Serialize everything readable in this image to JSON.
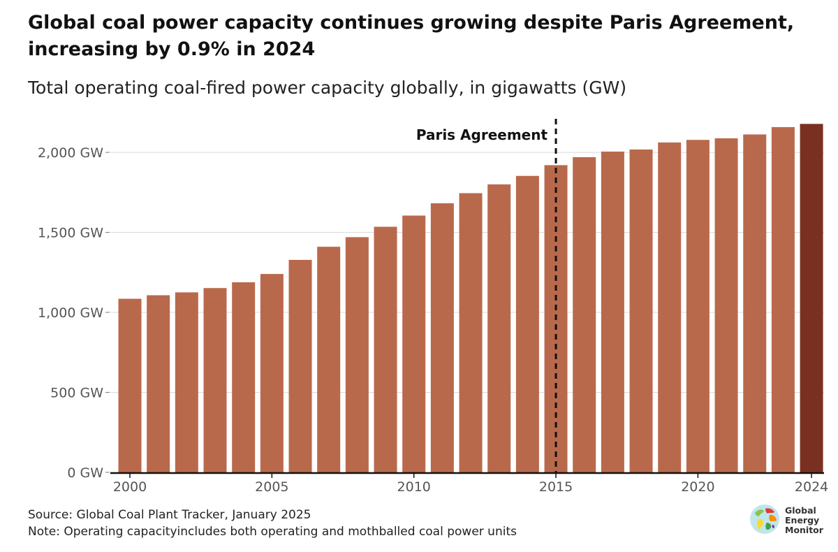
{
  "chart_data": {
    "type": "bar",
    "title": "Global coal power capacity continues growing despite Paris Agreement, increasing by 0.9% in 2024",
    "subtitle": "Total operating coal-fired power capacity globally, in gigawatts (GW)",
    "xlabel": "",
    "ylabel": "",
    "categories": [
      2000,
      2001,
      2002,
      2003,
      2004,
      2005,
      2006,
      2007,
      2008,
      2009,
      2010,
      2011,
      2012,
      2013,
      2014,
      2015,
      2016,
      2017,
      2018,
      2019,
      2020,
      2021,
      2022,
      2023,
      2024
    ],
    "values": [
      1085,
      1107,
      1125,
      1152,
      1188,
      1240,
      1328,
      1410,
      1470,
      1535,
      1605,
      1682,
      1745,
      1800,
      1853,
      1920,
      1970,
      2005,
      2018,
      2062,
      2078,
      2088,
      2112,
      2158,
      2178
    ],
    "ylim": [
      0,
      2175
    ],
    "y_ticks": [
      0,
      500,
      1000,
      1500,
      2000
    ],
    "y_tick_labels": [
      "0 GW",
      "500 GW",
      "1,000 GW",
      "1,500 GW",
      "2,000 GW"
    ],
    "x_ticks": [
      2000,
      2005,
      2010,
      2015,
      2020,
      2024
    ],
    "x_tick_labels": [
      "2000",
      "2005",
      "2010",
      "2015",
      "2020",
      "2024"
    ],
    "gridlines": true,
    "legend": "none",
    "colors": {
      "bar": "#b9694b",
      "bar_highlight": "#7a3021",
      "grid": "#d9d9d9",
      "axis": "#111111",
      "annotation_line": "#111111"
    },
    "highlight_category": 2024,
    "annotation": {
      "label": "Paris Agreement",
      "x": 2015
    }
  },
  "footer": {
    "source": "Source: Global Coal Plant Tracker, January 2025",
    "note": "Note: Operating capacityincludes both operating and mothballed coal power units"
  },
  "logo": {
    "line1": "Global",
    "line2": "Energy",
    "line3": "Monitor",
    "icon": "globe-icon"
  }
}
